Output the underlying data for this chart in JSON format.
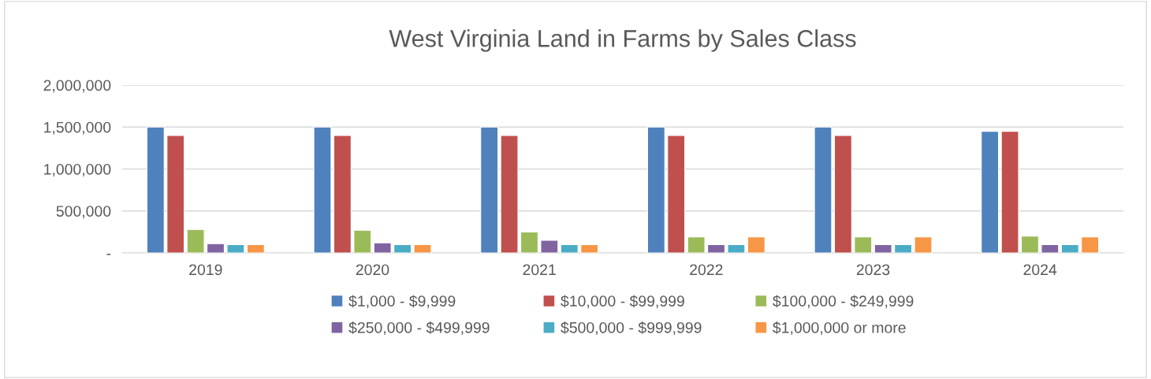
{
  "chart_data": {
    "type": "bar",
    "title": "West Virginia Land in Farms by Sales Class",
    "categories": [
      "2019",
      "2020",
      "2021",
      "2022",
      "2023",
      "2024"
    ],
    "series": [
      {
        "name": "$1,000 - $9,999",
        "color": "#4f81bd",
        "values": [
          1500000,
          1500000,
          1500000,
          1500000,
          1500000,
          1450000
        ]
      },
      {
        "name": "$10,000 - $99,999",
        "color": "#c0504d",
        "values": [
          1400000,
          1400000,
          1400000,
          1400000,
          1400000,
          1450000
        ]
      },
      {
        "name": "$100,000 - $249,999",
        "color": "#9bbb59",
        "values": [
          280000,
          270000,
          250000,
          190000,
          190000,
          200000
        ]
      },
      {
        "name": "$250,000 - $499,999",
        "color": "#8064a2",
        "values": [
          110000,
          120000,
          150000,
          100000,
          100000,
          100000
        ]
      },
      {
        "name": "$500,000 - $999,999",
        "color": "#4bacc6",
        "values": [
          100000,
          100000,
          100000,
          100000,
          100000,
          100000
        ]
      },
      {
        "name": "$1,000,000 or more",
        "color": "#f79646",
        "values": [
          100000,
          100000,
          100000,
          190000,
          190000,
          190000
        ]
      }
    ],
    "ylim": [
      0,
      2000000
    ],
    "yticks": [
      {
        "value": 0,
        "label": "-"
      },
      {
        "value": 500000,
        "label": "500,000"
      },
      {
        "value": 1000000,
        "label": "1,000,000"
      },
      {
        "value": 1500000,
        "label": "1,500,000"
      },
      {
        "value": 2000000,
        "label": "2,000,000"
      }
    ],
    "grid": "y",
    "legend": "bottom"
  }
}
